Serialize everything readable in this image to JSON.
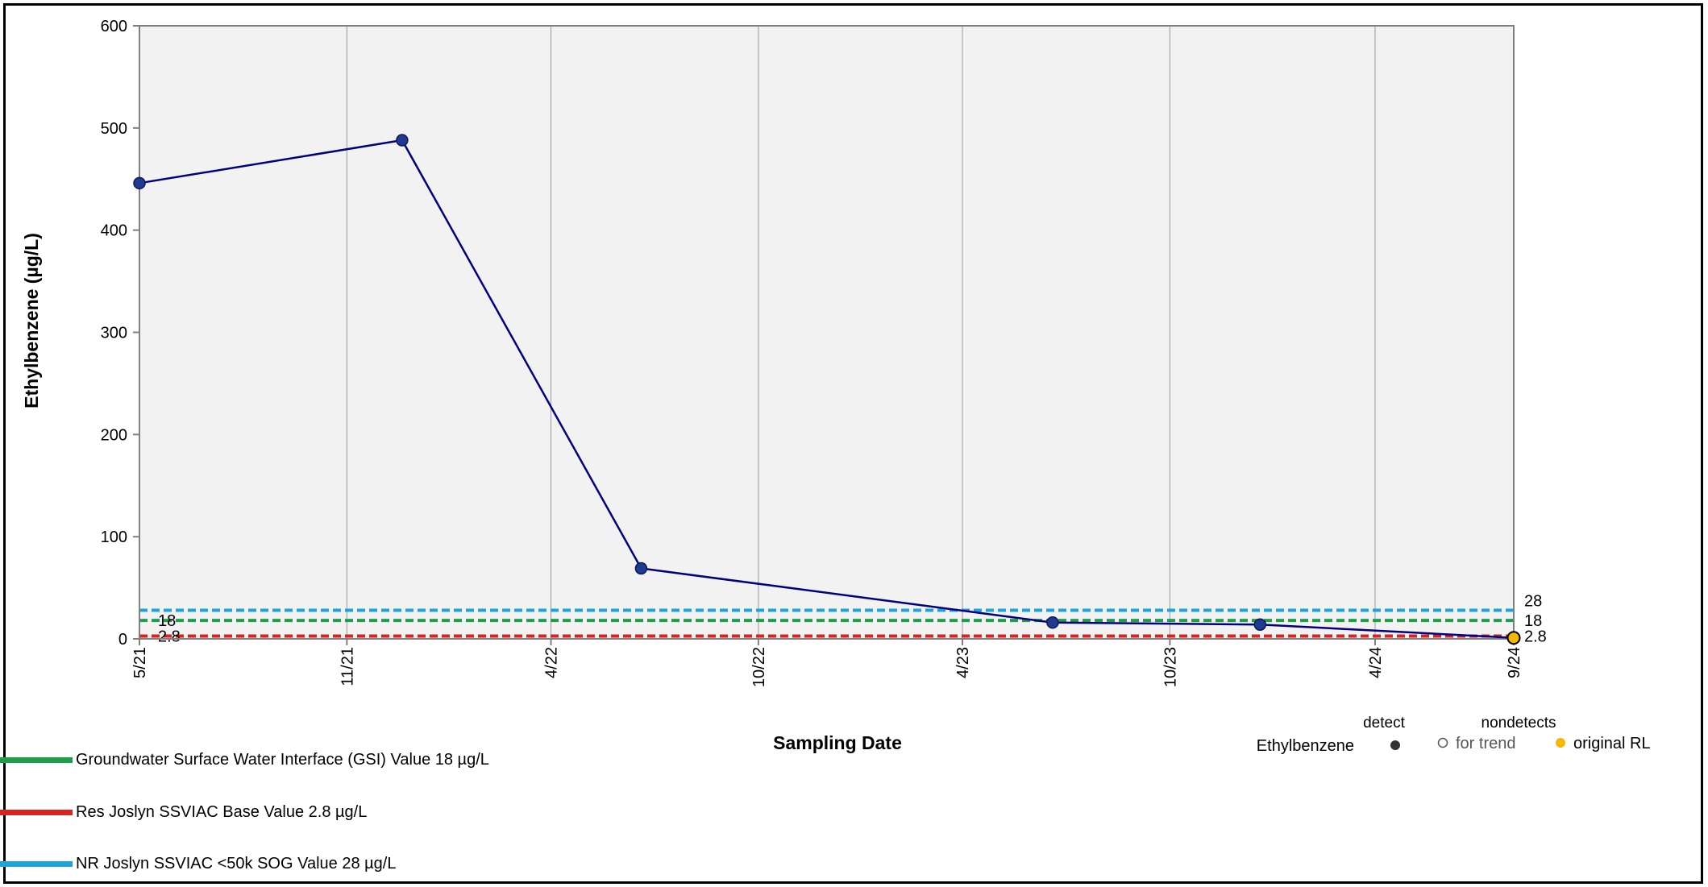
{
  "chart_data": {
    "type": "line",
    "ylabel": "Ethylbenzene (µg/L)",
    "xlabel": "Sampling Date",
    "ylim": [
      0,
      600
    ],
    "y_ticks": [
      "0",
      "100",
      "200",
      "300",
      "400",
      "500",
      "600"
    ],
    "x_range": [
      "2021-05-01",
      "2024-09-01"
    ],
    "x_ticks": [
      {
        "date": "2021-05-01",
        "label": "5/21"
      },
      {
        "date": "2021-11-01",
        "label": "11/21"
      },
      {
        "date": "2022-05-01",
        "label": "4/22"
      },
      {
        "date": "2022-11-01",
        "label": "10/22"
      },
      {
        "date": "2023-05-01",
        "label": "4/23"
      },
      {
        "date": "2023-11-01",
        "label": "10/23"
      },
      {
        "date": "2024-05-01",
        "label": "4/24"
      },
      {
        "date": "2024-09-01",
        "label": "9/24"
      }
    ],
    "grid": true,
    "series": [
      {
        "name": "Ethylbenzene",
        "color": "#000080",
        "marker_color": "#1f3a93",
        "points": [
          {
            "x": "2021-05-01",
            "y": 446,
            "detect": true
          },
          {
            "x": "2021-12-20",
            "y": 488,
            "detect": true
          },
          {
            "x": "2022-07-20",
            "y": 69,
            "detect": true
          },
          {
            "x": "2023-07-20",
            "y": 16,
            "detect": true
          },
          {
            "x": "2024-01-20",
            "y": 14,
            "detect": true
          },
          {
            "x": "2024-09-01",
            "y": 1,
            "detect": false,
            "original_rl": true
          }
        ]
      }
    ],
    "reference_lines": [
      {
        "value": 28,
        "label": "28",
        "color": "#1fa3dc",
        "left_label": ""
      },
      {
        "value": 18,
        "label": "18",
        "color": "#1e9e4a",
        "left_label": "18"
      },
      {
        "value": 2.8,
        "label": "2.8",
        "color": "#d9231f",
        "left_label": "2.8"
      }
    ],
    "marker_legend": {
      "series_label": "Ethylbenzene",
      "detect_header": "detect",
      "nondetects_header": "nondetects",
      "for_trend_label": "for trend",
      "original_rl_label": "original RL",
      "detect_color": "#333333",
      "original_rl_color": "#f5b800"
    }
  },
  "legend": [
    {
      "label": "Groundwater Surface Water Interface (GSI) Value 18 µg/L",
      "color": "#1e9e4a"
    },
    {
      "label": "Res Joslyn SSVIAC Base Value 2.8 µg/L",
      "color": "#d9231f"
    },
    {
      "label": "NR Joslyn SSVIAC <50k SOG Value 28 µg/L",
      "color": "#1fa3dc"
    }
  ]
}
